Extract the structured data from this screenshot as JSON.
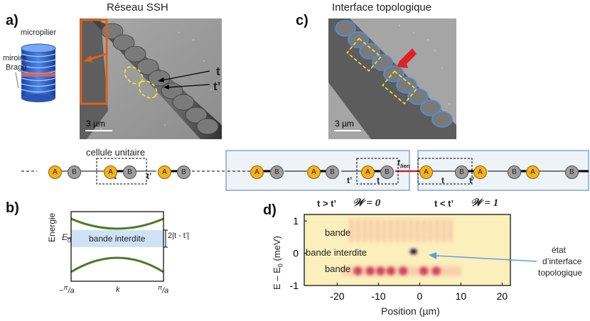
{
  "panels": {
    "a": {
      "label": "a)",
      "title": "Réseau SSH",
      "micropillar_label": "micropilier",
      "mirror_label_1": "miroirs",
      "mirror_label_2": "Bragg",
      "hopping_t": "t",
      "hopping_tprime": "t’",
      "scalebar": "3 µm",
      "unit_cell_label": "cellule unitaire",
      "chain_t": "t",
      "chain_tprime": "t’"
    },
    "b": {
      "label": "b)",
      "gap_label": "bande interdite",
      "y_axis": "Energie",
      "e0": "E",
      "e0_sub": "0",
      "gap_width": "2|t - t’|",
      "x_left": "−",
      "x_pi": "π",
      "x_a": "a",
      "x_mid": "k"
    },
    "c": {
      "label": "c)",
      "title": "Interface topologique",
      "scalebar": "3 µm",
      "chain_tprime_left": "t’",
      "chain_t_left": "t",
      "link_t": "t",
      "link_sub": "lien",
      "chain_t_right": "t",
      "chain_tprime_right": "t’"
    },
    "d": {
      "label": "d)",
      "left_cond": "t > t’",
      "left_w": "𝒲 = 0",
      "right_cond": "t < t’",
      "right_w": "𝒲 = 1",
      "band_top": "bande",
      "gap": "bande interdite",
      "band_bottom": "bande",
      "xlabel": "Position (µm)",
      "ylabel": "E – E",
      "ylabel_sub": "0",
      "ylabel_unit": " (meV)",
      "annotation_1": "état",
      "annotation_2": "d’interface",
      "annotation_3": "topologique"
    },
    "site_a": "A",
    "site_b": "B"
  },
  "chart_data": {
    "type": "heatmap",
    "xlabel": "Position (µm)",
    "ylabel": "E – E0 (meV)",
    "xlim": [
      -28,
      22
    ],
    "ylim": [
      -1,
      1.2
    ],
    "xticks": [
      -20,
      -10,
      0,
      10,
      20
    ],
    "yticks": [
      -1,
      0,
      1
    ],
    "bright_spots": [
      {
        "x": -15,
        "y": -0.55
      },
      {
        "x": -12,
        "y": -0.55
      },
      {
        "x": -9.5,
        "y": -0.55
      },
      {
        "x": -7,
        "y": -0.55
      },
      {
        "x": -4,
        "y": -0.55
      },
      {
        "x": 1,
        "y": -0.55
      },
      {
        "x": 4,
        "y": -0.55
      },
      {
        "x": -1.5,
        "y": 0.05
      }
    ],
    "colors": {
      "background": "#fbf0bc",
      "band": "#f39a8e",
      "peak": "#2a0a3a"
    }
  }
}
